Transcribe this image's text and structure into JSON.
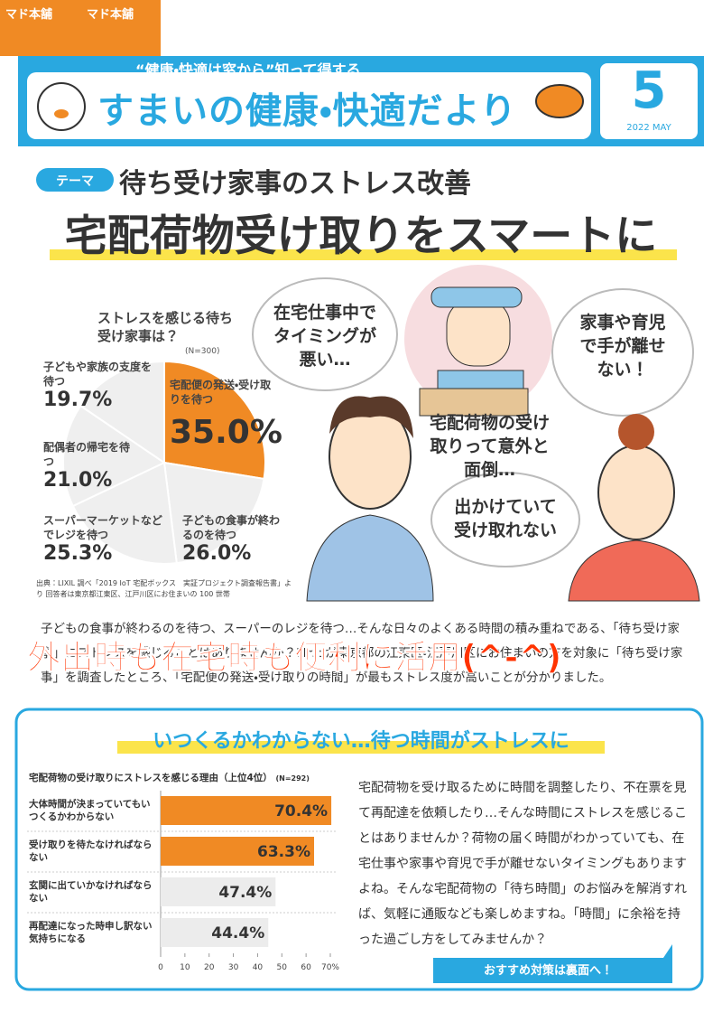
{
  "logos": [
    "マド本舗",
    "マド本舗"
  ],
  "header": {
    "tagline": "“健康・快適は窓から”知って得する",
    "title": "すまいの健康・快適だより",
    "issue": "5",
    "date": "2022 MAY"
  },
  "theme": {
    "tag": "テーマ",
    "subtitle": "待ち受け家事のストレス改善",
    "title": "宅配荷物受け取りをスマートに"
  },
  "pie": {
    "type": "pie",
    "title": "ストレスを感じる待ち受け家事は？",
    "note": "(N=300)",
    "categories": [
      "宅配便の発送・受け取りを待つ",
      "子どもの食事が終わるのを待つ",
      "スーパーマーケットなどでレジを待つ",
      "配偶者の帰宅を待つ",
      "子どもや家族の支度を待つ"
    ],
    "values": [
      35.0,
      26.0,
      25.3,
      21.0,
      19.7
    ],
    "value_labels": [
      "35.0%",
      "26.0%",
      "25.3%",
      "21.0%",
      "19.7%"
    ],
    "colors": [
      "#f08a24",
      "#efefef",
      "#efefef",
      "#efefef",
      "#efefef"
    ]
  },
  "source": "出典：LIXIL 調べ「2019 IoT 宅配ボックス　実証プロジェクト調査報告書」より 回答者は東京都江東区、江戸川区にお住まいの 100 世帯",
  "bubbles": [
    "在宅仕事中でタイミングが悪い…",
    "家事や育児で手が離せない！",
    "宅配荷物の受け取りって意外と面倒…",
    "出かけていて受け取れない"
  ],
  "intro": "子どもの食事が終わるのを待つ、スーパーのレジを待つ…そんな日々のよくある時間の積み重ねである、「待ち受け家事」にストレスを感じることはありませんか？LIXILが東京都の江東区・江戸川区にお住まいの方を対象に「待ち受け家事」を調査したところ、「宅配便の発送・受け取りの時間」が最もストレス度が高いことが分かりました。",
  "overlay": "外出時も在宅時も便利に活用(^-^)",
  "section": {
    "title": "いつくるかわからない…待つ時間がストレスに",
    "chart": {
      "type": "bar",
      "title": "宅配荷物の受け取りにストレスを感じる理由（上位4位）",
      "note": "(N=292)",
      "categories": [
        "大体時間が決まっていてもいつくるかわからない",
        "受け取りを待たなければならない",
        "玄関に出ていかなければならない",
        "再配達になった時申し訳ない気持ちになる"
      ],
      "values": [
        70.4,
        63.3,
        47.4,
        44.4
      ],
      "value_labels": [
        "70.4%",
        "63.3%",
        "47.4%",
        "44.4%"
      ],
      "colors": [
        "#f08a24",
        "#f08a24",
        "#ececec",
        "#ececec"
      ],
      "xlim": [
        0,
        70
      ],
      "xticks": [
        0,
        10,
        20,
        30,
        40,
        50,
        60,
        {
          "value": 70,
          "label": "70%"
        }
      ]
    },
    "body": "宅配荷物を受け取るために時間を調整したり、不在票を見て再配達を依頼したり…そんな時間にストレスを感じることはありませんか？荷物の届く時間がわかっていても、在宅仕事や家事や育児で手が離せないタイミングもありますよね。そんな宅配荷物の「待ち時間」のお悩みを解消すれば、気軽に通販なども楽しめますね。「時間」に余裕を持った過ごし方をしてみませんか？",
    "cta": "おすすめ対策は裏面へ！"
  }
}
